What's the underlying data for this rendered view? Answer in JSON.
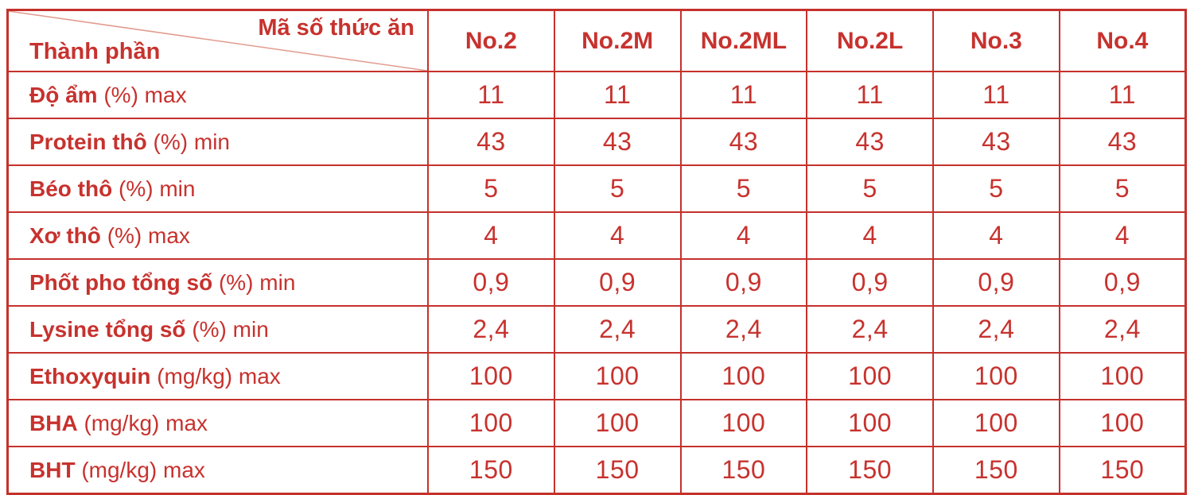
{
  "colors": {
    "text": "#C7322E",
    "border": "#C5312B",
    "diagonal": "#E29B8E",
    "background": "#FFFFFF"
  },
  "table": {
    "corner": {
      "top_label": "Mã số thức ăn",
      "bottom_label": "Thành phần"
    },
    "columns": [
      "No.2",
      "No.2M",
      "No.2ML",
      "No.2L",
      "No.3",
      "No.4"
    ],
    "rows": [
      {
        "name": "Độ ẩm",
        "spec": "(%) max",
        "values": [
          "11",
          "11",
          "11",
          "11",
          "11",
          "11"
        ]
      },
      {
        "name": "Protein thô",
        "spec": "(%) min",
        "values": [
          "43",
          "43",
          "43",
          "43",
          "43",
          "43"
        ]
      },
      {
        "name": "Béo thô",
        "spec": "(%) min",
        "values": [
          "5",
          "5",
          "5",
          "5",
          "5",
          "5"
        ]
      },
      {
        "name": "Xơ thô",
        "spec": "(%) max",
        "values": [
          "4",
          "4",
          "4",
          "4",
          "4",
          "4"
        ]
      },
      {
        "name": "Phốt pho tổng số",
        "spec": "(%) min",
        "values": [
          "0,9",
          "0,9",
          "0,9",
          "0,9",
          "0,9",
          "0,9"
        ]
      },
      {
        "name": "Lysine tổng số",
        "spec": "(%) min",
        "values": [
          "2,4",
          "2,4",
          "2,4",
          "2,4",
          "2,4",
          "2,4"
        ]
      },
      {
        "name": "Ethoxyquin",
        "spec": "(mg/kg) max",
        "values": [
          "100",
          "100",
          "100",
          "100",
          "100",
          "100"
        ]
      },
      {
        "name": "BHA",
        "spec": "(mg/kg) max",
        "values": [
          "100",
          "100",
          "100",
          "100",
          "100",
          "100"
        ]
      },
      {
        "name": "BHT",
        "spec": "(mg/kg) max",
        "values": [
          "150",
          "150",
          "150",
          "150",
          "150",
          "150"
        ]
      }
    ]
  }
}
